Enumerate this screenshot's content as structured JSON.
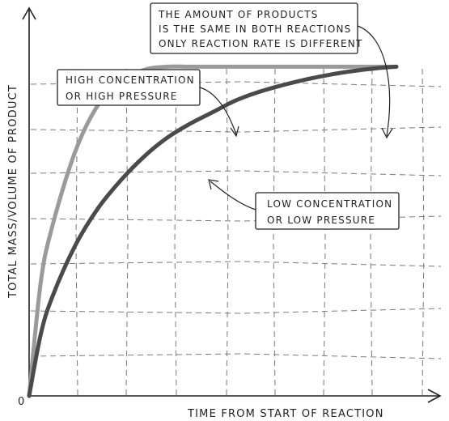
{
  "chart_data": {
    "type": "line",
    "xlabel": "TIME FROM START OF REACTION",
    "ylabel": "TOTAL MASS/VOLUME OF PRODUCT",
    "origin_label": "0",
    "grid": true,
    "x": [
      0,
      0.25,
      0.5,
      1,
      1.5,
      2,
      2.5,
      3,
      3.5,
      4,
      4.5,
      5,
      5.5,
      6,
      6.5,
      7,
      7.5,
      8
    ],
    "series": [
      {
        "color": "#9a9a9a",
        "values": [
          0,
          2.4,
          3.6,
          5.2,
          6.2,
          6.7,
          6.95,
          7.02,
          7.02,
          7.02,
          7.02,
          7.02,
          7.02,
          7.02,
          7.02,
          7.02,
          7.02,
          7.02
        ]
      },
      {
        "color": "#4a4a4a",
        "values": [
          0,
          1.3,
          2.1,
          3.2,
          4.0,
          4.6,
          5.1,
          5.5,
          5.8,
          6.05,
          6.3,
          6.48,
          6.62,
          6.74,
          6.84,
          6.92,
          6.98,
          7.02
        ]
      }
    ],
    "xlim": [
      0,
      8
    ],
    "ylim": [
      0,
      8.2
    ],
    "annotations": [
      {
        "text": [
          "HIGH CONCENTRATION",
          "OR HIGH PRESSURE"
        ]
      },
      {
        "text": [
          "LOW CONCENTRATION",
          "OR LOW PRESSURE"
        ]
      },
      {
        "text": [
          "THE AMOUNT OF PRODUCTS",
          "IS THE SAME IN BOTH REACTIONS",
          "ONLY REACTION RATE IS DIFFERENT"
        ]
      }
    ]
  }
}
